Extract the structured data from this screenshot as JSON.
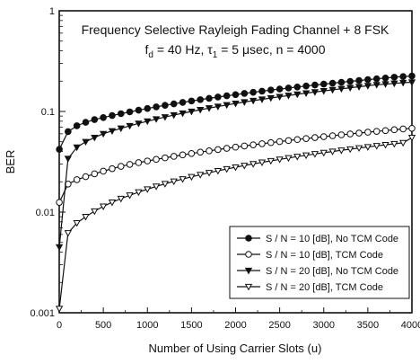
{
  "chart_data": {
    "type": "line",
    "title": "Frequency Selective Rayleigh Fading Channel + 8 FSK",
    "subtitle": {
      "fd_symbol": "f",
      "fd_subscript": "d",
      "fd_value": " = 40 Hz, ",
      "tau_symbol": "τ",
      "tau_subscript": "1",
      "tau_value": " = 5 μsec, n = 4000"
    },
    "xlabel": "Number of Using Carrier Slots  (u)",
    "ylabel": "BER",
    "xlim": [
      0,
      4000
    ],
    "ylim": [
      0.001,
      1
    ],
    "yscale": "log",
    "xticks": [
      0,
      500,
      1000,
      1500,
      2000,
      2500,
      3000,
      3500,
      4000
    ],
    "xtick_labels": [
      "0",
      "500",
      "1000",
      "1500",
      "2000",
      "2500",
      "3000",
      "3500",
      "4000"
    ],
    "yticks": [
      0.001,
      0.01,
      0.1,
      1
    ],
    "ytick_labels": [
      "0.001",
      "0.01",
      "0.1",
      "1"
    ],
    "grid": false,
    "legend_position": "bottom-right",
    "x": [
      1,
      100,
      200,
      300,
      400,
      500,
      600,
      700,
      800,
      900,
      1000,
      1100,
      1200,
      1300,
      1400,
      1500,
      1600,
      1700,
      1800,
      1900,
      2000,
      2100,
      2200,
      2300,
      2400,
      2500,
      2600,
      2700,
      2800,
      2900,
      3000,
      3100,
      3200,
      3300,
      3400,
      3500,
      3600,
      3700,
      3800,
      3900,
      4000
    ],
    "series": [
      {
        "name": "S / N = 10 [dB], No TCM Code",
        "marker": "filled-circle",
        "values": [
          0.042,
          0.063,
          0.072,
          0.078,
          0.083,
          0.087,
          0.091,
          0.095,
          0.099,
          0.103,
          0.107,
          0.111,
          0.115,
          0.119,
          0.123,
          0.127,
          0.131,
          0.135,
          0.139,
          0.143,
          0.147,
          0.151,
          0.155,
          0.159,
          0.163,
          0.167,
          0.171,
          0.175,
          0.179,
          0.183,
          0.187,
          0.191,
          0.195,
          0.199,
          0.203,
          0.207,
          0.211,
          0.215,
          0.219,
          0.222,
          0.225
        ]
      },
      {
        "name": "S / N = 10 [dB], TCM Code",
        "marker": "open-circle",
        "values": [
          0.0125,
          0.019,
          0.021,
          0.0225,
          0.024,
          0.0255,
          0.027,
          0.0285,
          0.0298,
          0.031,
          0.0322,
          0.0334,
          0.0346,
          0.0358,
          0.037,
          0.0382,
          0.0394,
          0.0406,
          0.0418,
          0.043,
          0.0442,
          0.0454,
          0.0466,
          0.0478,
          0.049,
          0.0502,
          0.0514,
          0.0526,
          0.0538,
          0.055,
          0.0562,
          0.0574,
          0.0586,
          0.0598,
          0.061,
          0.0622,
          0.0634,
          0.0646,
          0.0658,
          0.067,
          0.068
        ]
      },
      {
        "name": "S / N = 20 [dB], No TCM Code",
        "marker": "filled-triangle-down",
        "values": [
          0.0045,
          0.034,
          0.044,
          0.05,
          0.055,
          0.06,
          0.064,
          0.068,
          0.072,
          0.076,
          0.08,
          0.084,
          0.088,
          0.092,
          0.096,
          0.1,
          0.104,
          0.108,
          0.112,
          0.116,
          0.12,
          0.124,
          0.128,
          0.132,
          0.136,
          0.14,
          0.144,
          0.148,
          0.152,
          0.156,
          0.16,
          0.164,
          0.168,
          0.172,
          0.176,
          0.18,
          0.184,
          0.187,
          0.19,
          0.193,
          0.195
        ]
      },
      {
        "name": "S / N = 20 [dB], TCM Code",
        "marker": "open-triangle-down",
        "values": [
          0.0011,
          0.0062,
          0.0078,
          0.009,
          0.0102,
          0.0114,
          0.0125,
          0.0136,
          0.0147,
          0.0158,
          0.0169,
          0.018,
          0.0191,
          0.0202,
          0.0213,
          0.0224,
          0.0235,
          0.0246,
          0.0257,
          0.0268,
          0.0279,
          0.029,
          0.0301,
          0.0312,
          0.0323,
          0.0334,
          0.0345,
          0.0356,
          0.0367,
          0.0378,
          0.0389,
          0.04,
          0.0411,
          0.0422,
          0.0433,
          0.0444,
          0.0455,
          0.0466,
          0.0477,
          0.0488,
          0.055
        ]
      }
    ]
  }
}
